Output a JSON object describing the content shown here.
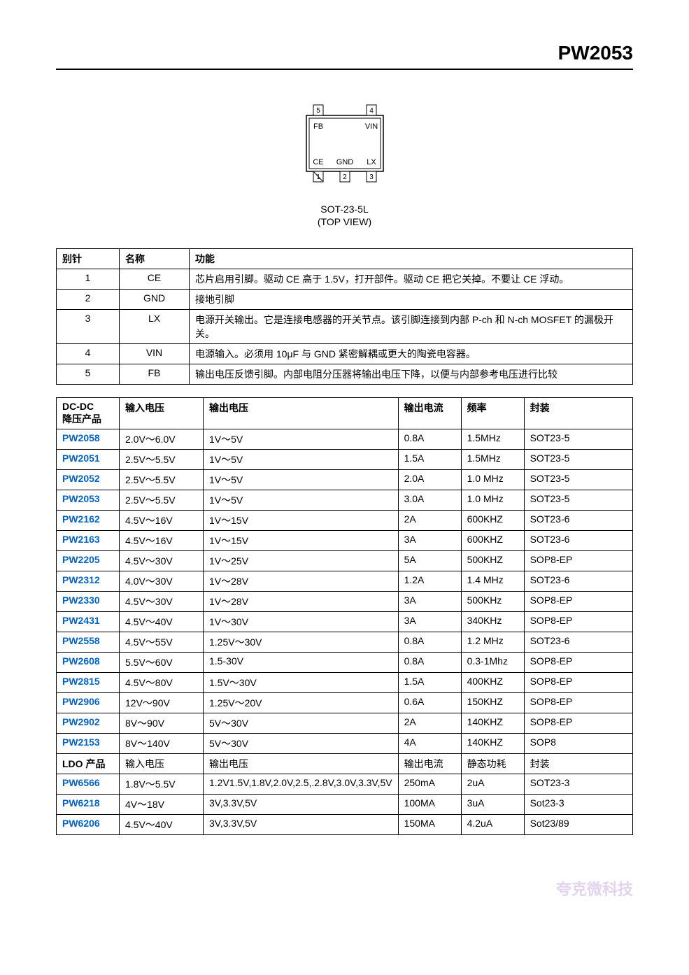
{
  "header": {
    "part": "PW2053"
  },
  "pinout": {
    "top_left_num": "5",
    "top_right_num": "4",
    "bot_left_num": "1",
    "bot_mid_num": "2",
    "bot_right_num": "3",
    "pin_fb": "FB",
    "pin_vin": "VIN",
    "pin_ce": "CE",
    "pin_gnd": "GND",
    "pin_lx": "LX",
    "label1": "SOT-23-5L",
    "label2": "(TOP VIEW)",
    "svg_colors": {
      "stroke": "#000000",
      "fill": "#ffffff",
      "text": "#000000"
    }
  },
  "pin_table": {
    "headers": [
      "别针",
      "名称",
      "功能"
    ],
    "rows": [
      {
        "pin": "1",
        "name": "CE",
        "func": "芯片启用引脚。驱动 CE 高于 1.5V，打开部件。驱动 CE 把它关掉。不要让 CE 浮动。"
      },
      {
        "pin": "2",
        "name": "GND",
        "func": "接地引脚"
      },
      {
        "pin": "3",
        "name": "LX",
        "func": "电源开关输出。它是连接电感器的开关节点。该引脚连接到内部 P-ch 和 N-ch MOSFET 的漏极开关。"
      },
      {
        "pin": "4",
        "name": "VIN",
        "func": "电源输入。必须用 10μF 与 GND 紧密解耦或更大的陶瓷电容器。"
      },
      {
        "pin": "5",
        "name": "FB",
        "func": "输出电压反馈引脚。内部电阻分压器将输出电压下降，以便与内部参考电压进行比较"
      }
    ]
  },
  "prod_table": {
    "headers1": [
      "DC-DC\n降压产品",
      "输入电压",
      "输出电压",
      "输出电流",
      "频率",
      "封装"
    ],
    "rows": [
      {
        "p": "PW2058",
        "link": true,
        "vin": "2.0V～6.0V",
        "vout": "1V～5V",
        "iout": "0.8A",
        "freq": "1.5MHz",
        "pkg": "SOT23-5"
      },
      {
        "p": "PW2051",
        "link": true,
        "vin": "2.5V～5.5V",
        "vout": "1V～5V",
        "iout": "1.5A",
        "freq": "1.5MHz",
        "pkg": "SOT23-5"
      },
      {
        "p": "PW2052",
        "link": true,
        "vin": "2.5V～5.5V",
        "vout": "1V～5V",
        "iout": "2.0A",
        "freq": "1.0 MHz",
        "pkg": "SOT23-5"
      },
      {
        "p": "PW2053",
        "link": true,
        "vin": "2.5V～5.5V",
        "vout": "1V～5V",
        "iout": "3.0A",
        "freq": "1.0 MHz",
        "pkg": "SOT23-5"
      },
      {
        "p": "PW2162",
        "link": true,
        "vin": "4.5V～16V",
        "vout": "1V～15V",
        "iout": "2A",
        "freq": "600KHZ",
        "pkg": "SOT23-6"
      },
      {
        "p": "PW2163",
        "link": true,
        "vin": "4.5V～16V",
        "vout": "1V～15V",
        "iout": "3A",
        "freq": "600KHZ",
        "pkg": "SOT23-6"
      },
      {
        "p": "PW2205",
        "link": true,
        "vin": "4.5V～30V",
        "vout": "1V～25V",
        "iout": "5A",
        "freq": "500KHZ",
        "pkg": "SOP8-EP"
      },
      {
        "p": "PW2312",
        "link": true,
        "vin": "4.0V～30V",
        "vout": "1V～28V",
        "iout": "1.2A",
        "freq": "1.4 MHz",
        "pkg": "SOT23-6"
      },
      {
        "p": "PW2330",
        "link": true,
        "vin": "4.5V～30V",
        "vout": "1V～28V",
        "iout": "3A",
        "freq": "500KHz",
        "pkg": "SOP8-EP"
      },
      {
        "p": "PW2431",
        "link": true,
        "vin": "4.5V～40V",
        "vout": "1V～30V",
        "iout": "3A",
        "freq": "340KHz",
        "pkg": "SOP8-EP"
      },
      {
        "p": "PW2558",
        "link": true,
        "vin": "4.5V～55V",
        "vout": "1.25V～30V",
        "iout": "0.8A",
        "freq": "1.2 MHz",
        "pkg": "SOT23-6"
      },
      {
        "p": "PW2608",
        "link": true,
        "vin": "5.5V～60V",
        "vout": "1.5-30V",
        "iout": "0.8A",
        "freq": "0.3-1Mhz",
        "pkg": "SOP8-EP"
      },
      {
        "p": "PW2815",
        "link": true,
        "vin": "4.5V～80V",
        "vout": "1.5V～30V",
        "iout": "1.5A",
        "freq": "400KHZ",
        "pkg": "SOP8-EP"
      },
      {
        "p": "PW2906",
        "link": true,
        "vin": "12V～90V",
        "vout": "1.25V～20V",
        "iout": "0.6A",
        "freq": "150KHZ",
        "pkg": "SOP8-EP"
      },
      {
        "p": "PW2902",
        "link": true,
        "vin": "8V～90V",
        "vout": "5V～30V",
        "iout": "2A",
        "freq": "140KHZ",
        "pkg": "SOP8-EP"
      },
      {
        "p": "PW2153",
        "link": true,
        "vin": "8V～140V",
        "vout": "5V～30V",
        "iout": "4A",
        "freq": "140KHZ",
        "pkg": "SOP8"
      },
      {
        "p": "LDO 产品",
        "link": false,
        "bold": true,
        "vin": "输入电压",
        "vout": "输出电压",
        "iout": "输出电流",
        "freq": "静态功耗",
        "pkg": "封装"
      },
      {
        "p": "PW6566",
        "link": true,
        "vin": "1.8V～5.5V",
        "vout": "1.2V1.5V,1.8V,2.0V,2.5,.2.8V,3.0V,3.3V,5V",
        "iout": "250mA",
        "freq": "2uA",
        "pkg": "SOT23-3"
      },
      {
        "p": "PW6218",
        "link": true,
        "vin": "4V～18V",
        "vout": "3V,3.3V,5V",
        "iout": "100MA",
        "freq": "3uA",
        "pkg": "Sot23-3"
      },
      {
        "p": "PW6206",
        "link": true,
        "vin": "4.5V～40V",
        "vout": "3V,3.3V,5V",
        "iout": "150MA",
        "freq": "4.2uA",
        "pkg": "Sot23/89"
      }
    ]
  },
  "footer": {
    "text": "夸克微科技"
  }
}
